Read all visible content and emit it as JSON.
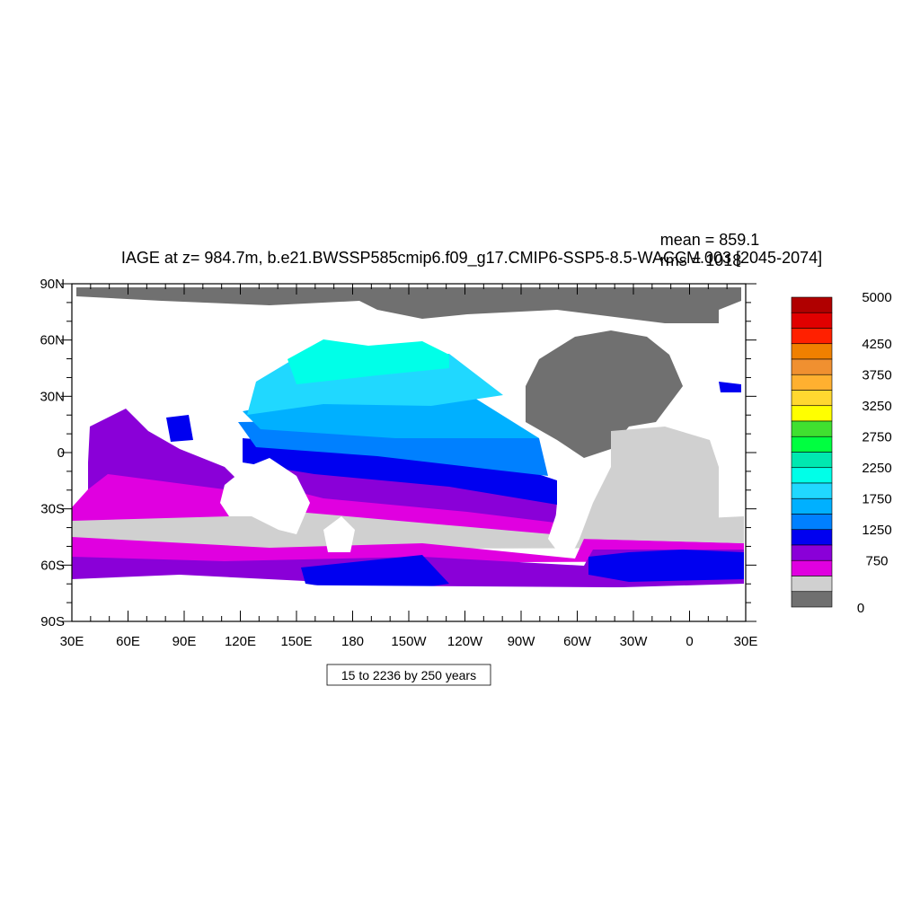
{
  "title": "IAGE at z= 984.7m, b.e21.BWSSP585cmip6.f09_g17.CMIP6-SSP5-8.5-WACCM.003 [2045-2074]",
  "mean": "mean = 859.1",
  "rms": "rms = 1018",
  "x_tick_labels": [
    "30E",
    "60E",
    "90E",
    "120E",
    "150E",
    "180",
    "150W",
    "120W",
    "90W",
    "60W",
    "30W",
    "0",
    "30E"
  ],
  "y_tick_labels": [
    "90N",
    "60N",
    "30N",
    "0",
    "30S",
    "60S",
    "90S"
  ],
  "info": "15 to 2236 by 250 years",
  "colorbar": {
    "colors": [
      "#b00000",
      "#e00000",
      "#ff2000",
      "#f08000",
      "#f09030",
      "#ffb030",
      "#ffd830",
      "#ffff00",
      "#40e030",
      "#00ff40",
      "#00e8b0",
      "#00ffe8",
      "#20d8ff",
      "#00b0ff",
      "#0080ff",
      "#0000f0",
      "#8a00d8",
      "#e000e0",
      "#d0d0d0",
      "#707070"
    ],
    "labels": [
      "5000",
      "4250",
      "3750",
      "3250",
      "2750",
      "2250",
      "1750",
      "1250",
      "750",
      "0"
    ]
  }
}
